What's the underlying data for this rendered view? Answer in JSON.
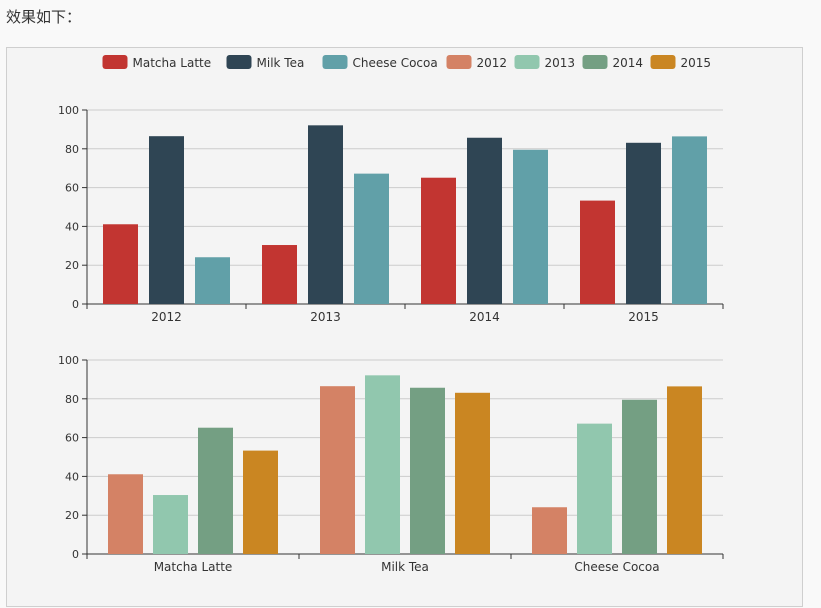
{
  "intro_text": "效果如下：",
  "legend": [
    {
      "name": "Matcha Latte",
      "color": "#c23531"
    },
    {
      "name": "Milk Tea",
      "color": "#2f4554"
    },
    {
      "name": "Cheese Cocoa",
      "color": "#61a0a8"
    },
    {
      "name": "2012",
      "color": "#d48265"
    },
    {
      "name": "2013",
      "color": "#91c7ae"
    },
    {
      "name": "2014",
      "color": "#749f83"
    },
    {
      "name": "2015",
      "color": "#ca8622"
    }
  ],
  "chart_data": [
    {
      "type": "bar",
      "title": "",
      "categories": [
        "2012",
        "2013",
        "2014",
        "2015"
      ],
      "ylim": [
        0,
        100
      ],
      "yticks": [
        0,
        20,
        40,
        60,
        80,
        100
      ],
      "grid": true,
      "series": [
        {
          "name": "Matcha Latte",
          "color": "#c23531",
          "values": [
            41.1,
            30.4,
            65.1,
            53.3
          ]
        },
        {
          "name": "Milk Tea",
          "color": "#2f4554",
          "values": [
            86.5,
            92.1,
            85.7,
            83.1
          ]
        },
        {
          "name": "Cheese Cocoa",
          "color": "#61a0a8",
          "values": [
            24.1,
            67.2,
            79.5,
            86.4
          ]
        }
      ]
    },
    {
      "type": "bar",
      "title": "",
      "categories": [
        "Matcha Latte",
        "Milk Tea",
        "Cheese Cocoa"
      ],
      "ylim": [
        0,
        100
      ],
      "yticks": [
        0,
        20,
        40,
        60,
        80,
        100
      ],
      "grid": true,
      "series": [
        {
          "name": "2012",
          "color": "#d48265",
          "values": [
            41.1,
            86.5,
            24.1
          ]
        },
        {
          "name": "2013",
          "color": "#91c7ae",
          "values": [
            30.4,
            92.1,
            67.2
          ]
        },
        {
          "name": "2014",
          "color": "#749f83",
          "values": [
            65.1,
            85.7,
            79.5
          ]
        },
        {
          "name": "2015",
          "color": "#ca8622",
          "values": [
            53.3,
            83.1,
            86.4
          ]
        }
      ]
    }
  ]
}
